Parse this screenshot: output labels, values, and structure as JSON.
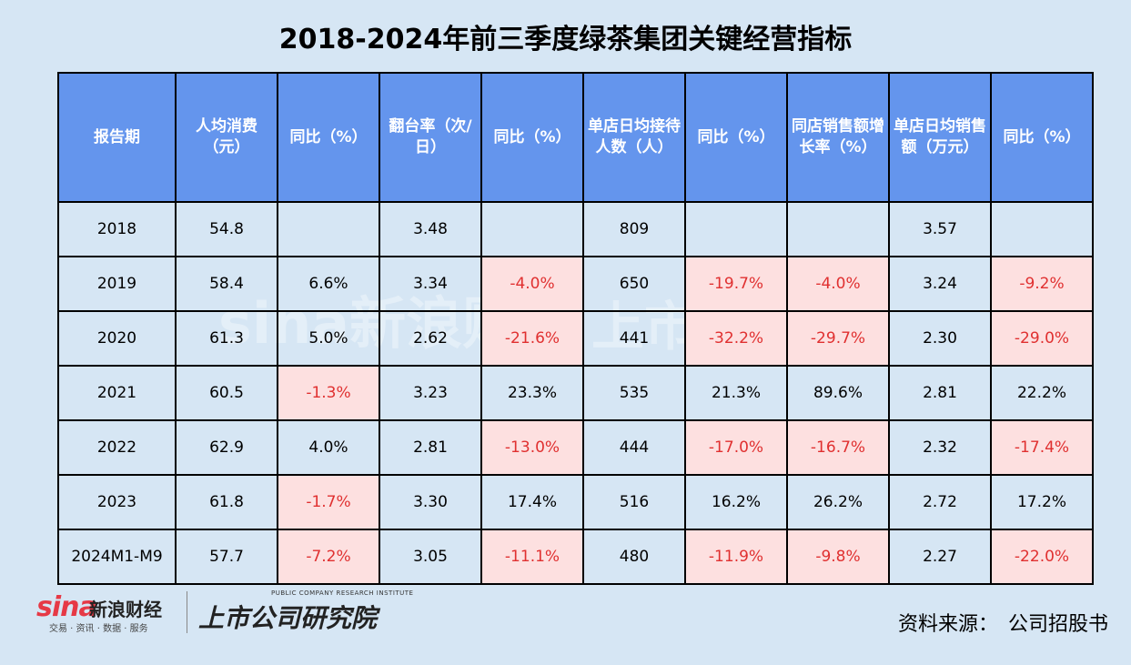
{
  "title": "2018-2024年前三季度绿茶集团关键经营指标",
  "watermark": {
    "sina": "sina新浪财经",
    "inst": "上市公司"
  },
  "chart_data": {
    "type": "table",
    "title": "2018-2024年前三季度绿茶集团关键经营指标",
    "columns": [
      "报告期",
      "人均消费（元）",
      "同比（%）",
      "翻台率（次/日）",
      "同比（%）",
      "单店日均接待人数（人）",
      "同比（%）",
      "同店销售额增长率（%）",
      "单店日均销售额（万元）",
      "同比（%）"
    ],
    "rows": [
      [
        "2018",
        "54.8",
        "",
        "3.48",
        "",
        "809",
        "",
        "",
        "3.57",
        ""
      ],
      [
        "2019",
        "58.4",
        "6.6%",
        "3.34",
        "-4.0%",
        "650",
        "-19.7%",
        "-4.0%",
        "3.24",
        "-9.2%"
      ],
      [
        "2020",
        "61.3",
        "5.0%",
        "2.62",
        "-21.6%",
        "441",
        "-32.2%",
        "-29.7%",
        "2.30",
        "-29.0%"
      ],
      [
        "2021",
        "60.5",
        "-1.3%",
        "3.23",
        "23.3%",
        "535",
        "21.3%",
        "89.6%",
        "2.81",
        "22.2%"
      ],
      [
        "2022",
        "62.9",
        "4.0%",
        "2.81",
        "-13.0%",
        "444",
        "-17.0%",
        "-16.7%",
        "2.32",
        "-17.4%"
      ],
      [
        "2023",
        "61.8",
        "-1.7%",
        "3.30",
        "17.4%",
        "516",
        "16.2%",
        "26.2%",
        "2.72",
        "17.2%"
      ],
      [
        "2024M1-M9",
        "57.7",
        "-7.2%",
        "3.05",
        "-11.1%",
        "480",
        "-11.9%",
        "-9.8%",
        "2.27",
        "-22.0%"
      ]
    ],
    "colors": {
      "header_bg": "#6495ed",
      "negative_bg": "#fde0e0",
      "negative_text": "#e03030",
      "page_bg": "#d6e6f4"
    }
  },
  "footer": {
    "sina_logo": "sina",
    "sina_name": "新浪财经",
    "sina_sub": "交易 · 资讯 · 数据 · 服务",
    "inst_en": "PUBLIC COMPANY RESEARCH INSTITUTE",
    "inst_cn": "上市公司研究院",
    "source": "资料来源：　公司招股书"
  }
}
